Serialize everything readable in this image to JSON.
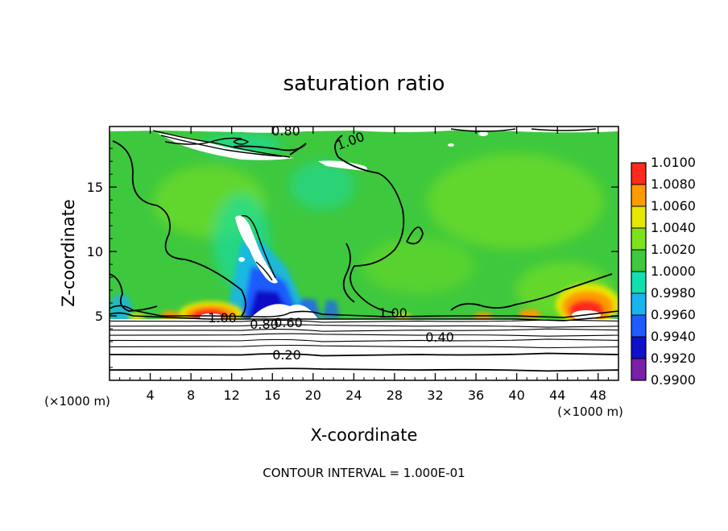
{
  "chart_data": {
    "type": "heatmap",
    "title": "saturation ratio",
    "xlabel": "X-coordinate",
    "ylabel": "Z-coordinate",
    "x_unit_left": "(×1000 m)",
    "x_unit_right": "(×1000 m)",
    "xlim": [
      0,
      50
    ],
    "ylim": [
      0,
      19.7
    ],
    "x_ticks": [
      "4",
      "8",
      "12",
      "16",
      "20",
      "24",
      "28",
      "32",
      "36",
      "40",
      "44",
      "48"
    ],
    "y_ticks": [
      "5",
      "10",
      "15"
    ],
    "colorbar": {
      "levels": [
        "0.9900",
        "0.9920",
        "0.9940",
        "0.9960",
        "0.9980",
        "1.0000",
        "1.0020",
        "1.0040",
        "1.0060",
        "1.0080",
        "1.0100"
      ],
      "colors": [
        "#7a1fa8",
        "#1010c8",
        "#1e5cff",
        "#18b4f0",
        "#10e0b0",
        "#3ec83e",
        "#7de21c",
        "#e6e600",
        "#ff9a00",
        "#ff2a1a",
        "#f08080"
      ]
    },
    "contour_labels": [
      "0.80",
      "1.00",
      "1.00",
      "0.80",
      "0.60",
      "1.00",
      "0.40",
      "0.20"
    ],
    "contour_interval_text": "CONTOUR INTERVAL = 1.000E-01",
    "lower_layer_isolines_z": [
      0.8,
      2.0,
      2.6,
      3.1,
      3.5,
      3.9,
      4.2,
      4.6
    ]
  },
  "colors": {
    "background_field": "#3ec83e",
    "cloud_free": "#ffffff"
  }
}
